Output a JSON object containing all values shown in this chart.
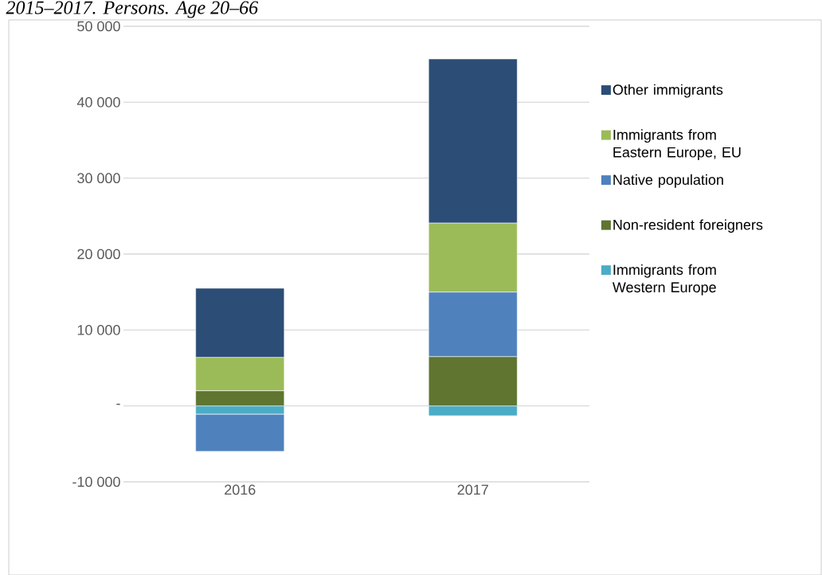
{
  "chart_data": {
    "type": "bar",
    "stacked": true,
    "title": "2015–2017. Persons. Age 20–66",
    "categories": [
      "2016",
      "2017"
    ],
    "series": [
      {
        "name": "Immigrants from Western Europe",
        "color": "#4bacc6",
        "values": [
          -1100,
          -1300
        ]
      },
      {
        "name": "Non-resident foreigners",
        "color": "#5f7530",
        "values": [
          2000,
          6500
        ]
      },
      {
        "name": "Native population",
        "color": "#4f81bd",
        "values": [
          -4900,
          8500
        ]
      },
      {
        "name": "Immigrants from Eastern Europe, EU",
        "color": "#9bbb59",
        "values": [
          4400,
          9100
        ]
      },
      {
        "name": "Other immigrants",
        "color": "#2c4d75",
        "values": [
          9100,
          21600
        ]
      }
    ],
    "ylim": [
      -10000,
      50000
    ],
    "yticks": [
      {
        "value": -10000,
        "label": "-10 000"
      },
      {
        "value": 0,
        "label": "-"
      },
      {
        "value": 10000,
        "label": "10 000"
      },
      {
        "value": 20000,
        "label": "20 000"
      },
      {
        "value": 30000,
        "label": "30 000"
      },
      {
        "value": 40000,
        "label": "40 000"
      },
      {
        "value": 50000,
        "label": "50 000"
      }
    ],
    "grid": "y",
    "legend": "right"
  }
}
